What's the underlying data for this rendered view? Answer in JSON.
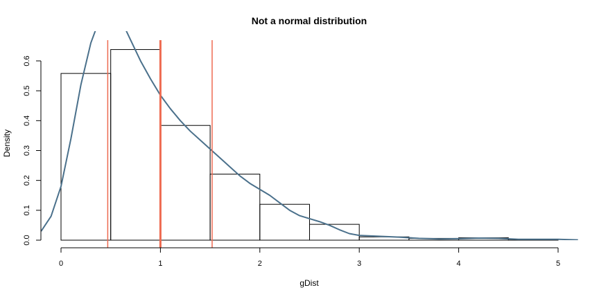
{
  "chart_data": {
    "type": "bar",
    "title": "Not a normal distribution",
    "xlabel": "gDist",
    "ylabel": "Density",
    "xlim": [
      -0.2,
      5.2
    ],
    "ylim": [
      0,
      0.65
    ],
    "x_ticks": [
      0,
      1,
      2,
      3,
      4,
      5
    ],
    "y_ticks": [
      0.0,
      0.1,
      0.2,
      0.3,
      0.4,
      0.5,
      0.6
    ],
    "y_tick_labels": [
      "0.0",
      "0.1",
      "0.2",
      "0.3",
      "0.4",
      "0.5",
      "0.6"
    ],
    "bins": [
      {
        "x0": 0.0,
        "x1": 0.5,
        "density": 0.558
      },
      {
        "x0": 0.5,
        "x1": 1.0,
        "density": 0.638
      },
      {
        "x0": 1.0,
        "x1": 1.5,
        "density": 0.384
      },
      {
        "x0": 1.5,
        "x1": 2.0,
        "density": 0.221
      },
      {
        "x0": 2.0,
        "x1": 2.5,
        "density": 0.12
      },
      {
        "x0": 2.5,
        "x1": 3.0,
        "density": 0.053
      },
      {
        "x0": 3.0,
        "x1": 3.5,
        "density": 0.011
      },
      {
        "x0": 3.5,
        "x1": 4.0,
        "density": 0.006
      },
      {
        "x0": 4.0,
        "x1": 4.5,
        "density": 0.008
      },
      {
        "x0": 4.5,
        "x1": 5.0,
        "density": 0.003
      }
    ],
    "density_curve": {
      "color": "#4a708b",
      "points": [
        [
          -0.2,
          0.03
        ],
        [
          -0.1,
          0.08
        ],
        [
          0.0,
          0.18
        ],
        [
          0.1,
          0.34
        ],
        [
          0.2,
          0.52
        ],
        [
          0.3,
          0.66
        ],
        [
          0.4,
          0.75
        ],
        [
          0.5,
          0.78
        ],
        [
          0.6,
          0.74
        ],
        [
          0.7,
          0.67
        ],
        [
          0.8,
          0.6
        ],
        [
          0.9,
          0.54
        ],
        [
          1.0,
          0.485
        ],
        [
          1.1,
          0.44
        ],
        [
          1.2,
          0.4
        ],
        [
          1.3,
          0.365
        ],
        [
          1.4,
          0.335
        ],
        [
          1.5,
          0.305
        ],
        [
          1.6,
          0.275
        ],
        [
          1.7,
          0.245
        ],
        [
          1.8,
          0.215
        ],
        [
          1.9,
          0.19
        ],
        [
          2.0,
          0.17
        ],
        [
          2.1,
          0.15
        ],
        [
          2.2,
          0.125
        ],
        [
          2.3,
          0.1
        ],
        [
          2.4,
          0.082
        ],
        [
          2.5,
          0.072
        ],
        [
          2.6,
          0.062
        ],
        [
          2.7,
          0.05
        ],
        [
          2.8,
          0.035
        ],
        [
          2.9,
          0.022
        ],
        [
          3.0,
          0.016
        ],
        [
          3.2,
          0.013
        ],
        [
          3.4,
          0.01
        ],
        [
          3.6,
          0.006
        ],
        [
          3.8,
          0.004
        ],
        [
          4.0,
          0.005
        ],
        [
          4.2,
          0.007
        ],
        [
          4.4,
          0.006
        ],
        [
          4.6,
          0.003
        ],
        [
          4.8,
          0.003
        ],
        [
          5.0,
          0.003
        ],
        [
          5.2,
          0.001
        ]
      ]
    },
    "vertical_lines": [
      {
        "x": 0.47,
        "color": "#ee6a50",
        "weight": "normal"
      },
      {
        "x": 1.0,
        "color": "#ee6a50",
        "weight": "bold"
      },
      {
        "x": 1.52,
        "color": "#ee6a50",
        "weight": "normal"
      }
    ],
    "grid": false,
    "legend": "none"
  }
}
